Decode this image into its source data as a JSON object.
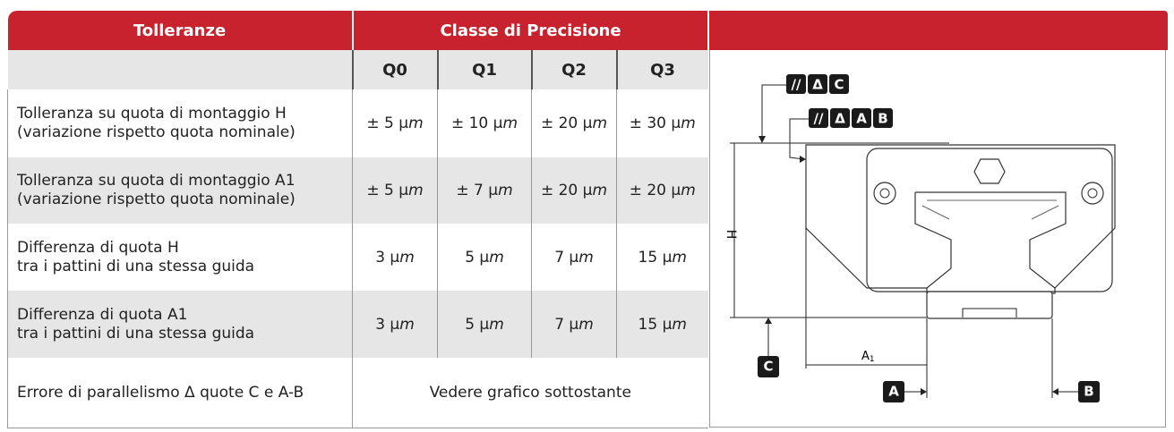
{
  "header": {
    "col1": "Tolleranze",
    "col2": "Classe di Precisione"
  },
  "classes": [
    "Q0",
    "Q1",
    "Q2",
    "Q3"
  ],
  "rows": [
    {
      "label": [
        "Tolleranza su quota di montaggio H",
        "(variazione rispetto quota nominale)"
      ],
      "values": [
        "± 5 μm",
        "± 10 μm",
        "± 20 μm",
        "± 30 μm"
      ]
    },
    {
      "label": [
        "Tolleranza su quota di montaggio A1",
        "(variazione rispetto quota nominale)"
      ],
      "values": [
        "± 5 μm",
        "± 7 μm",
        "± 20 μm",
        "± 20 μm"
      ]
    },
    {
      "label": [
        "Differenza di quota H",
        "tra i pattini di una stessa guida"
      ],
      "values": [
        "3 μm",
        "5 μm",
        "7 μm",
        "15 μm"
      ]
    },
    {
      "label": [
        "Differenza di quota A1",
        "tra i pattini di una stessa guida"
      ],
      "values": [
        "3 μm",
        "5 μm",
        "7 μm",
        "15 μm"
      ]
    }
  ],
  "last_row": {
    "label": "Errore di parallelismo Δ quote C e A-B",
    "value": "Vedere grafico sottostante"
  },
  "diagram": {
    "parallel": "//",
    "delta": "Δ",
    "c": "C",
    "a": "A",
    "b": "B",
    "h": "H",
    "a1": "A",
    "a1_sub": "1"
  }
}
